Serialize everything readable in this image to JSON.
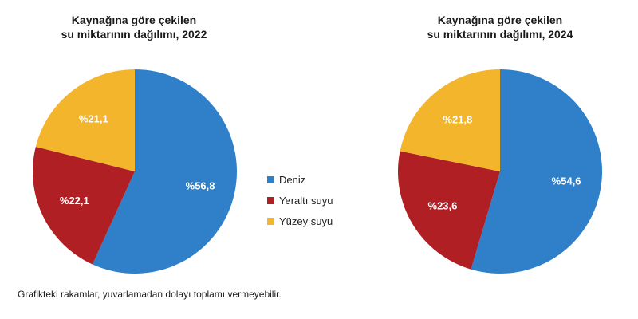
{
  "colors": {
    "deniz": "#2F80C8",
    "yeralti": "#B01F24",
    "yuzey": "#F2B52C"
  },
  "legend": [
    {
      "label": "Deniz",
      "color": "#2F80C8"
    },
    {
      "label": "Yeraltı suyu",
      "color": "#B01F24"
    },
    {
      "label": "Yüzey suyu",
      "color": "#F2B52C"
    }
  ],
  "footnote": "Grafikteki rakamlar, yuvarlamadan dolayı toplamı vermeyebilir.",
  "chart_data": [
    {
      "type": "pie",
      "title_line1": "Kaynağına göre çekilen",
      "title_line2": "su miktarının dağılımı, 2022",
      "categories": [
        "Deniz",
        "Yeraltı suyu",
        "Yüzey suyu"
      ],
      "values": [
        56.8,
        22.1,
        21.1
      ],
      "labels": [
        "%56,8",
        "%22,1",
        "%21,1"
      ],
      "colors": [
        "#2F80C8",
        "#B01F24",
        "#F2B52C"
      ]
    },
    {
      "type": "pie",
      "title_line1": "Kaynağına göre çekilen",
      "title_line2": "su miktarının dağılımı, 2024",
      "categories": [
        "Deniz",
        "Yeraltı suyu",
        "Yüzey suyu"
      ],
      "values": [
        54.6,
        23.6,
        21.8
      ],
      "labels": [
        "%54,6",
        "%23,6",
        "%21,8"
      ],
      "colors": [
        "#2F80C8",
        "#B01F24",
        "#F2B52C"
      ]
    }
  ]
}
